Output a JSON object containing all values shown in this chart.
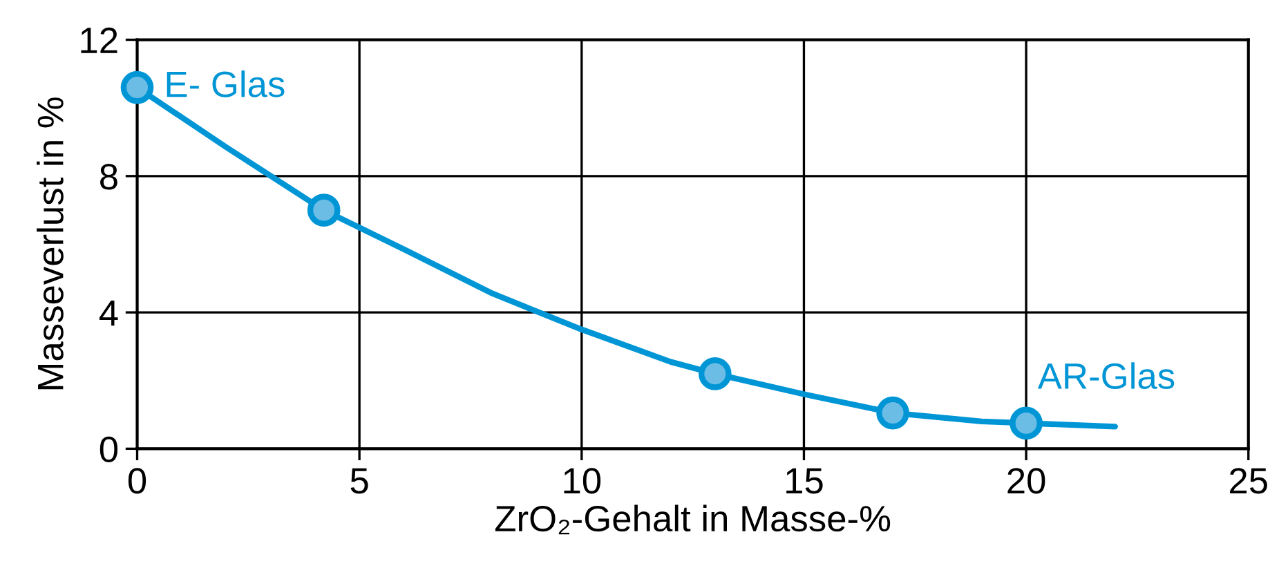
{
  "chart_data": {
    "type": "scatter",
    "xlabel": "ZrO₂-Gehalt in Masse-%",
    "ylabel": "Masseverlust in %",
    "xlim": [
      0,
      25
    ],
    "ylim": [
      0,
      12
    ],
    "xticks": [
      0,
      5,
      10,
      15,
      20,
      25
    ],
    "yticks": [
      0,
      4,
      8,
      12
    ],
    "grid": true,
    "marker": "circle",
    "series": [
      {
        "type": "line",
        "color": "#0096d6",
        "x": [
          0,
          2,
          4.2,
          6,
          8,
          10,
          12,
          13,
          15,
          17,
          19,
          20,
          22
        ],
        "values": [
          10.6,
          8.85,
          7.0,
          5.85,
          4.55,
          3.5,
          2.55,
          2.2,
          1.6,
          1.05,
          0.8,
          0.75,
          0.65
        ],
        "marker": "none",
        "line_style": "solid"
      },
      {
        "color": "#0096d6",
        "x": [
          0,
          4.2,
          13,
          17,
          20
        ],
        "values": [
          10.6,
          7.0,
          2.2,
          1.05,
          0.75
        ]
      }
    ],
    "annotations": [
      {
        "text": "E- Glas",
        "x": 0,
        "y": 10.6
      },
      {
        "text": "AR-Glas",
        "x": 20,
        "y": 0.75
      }
    ]
  }
}
